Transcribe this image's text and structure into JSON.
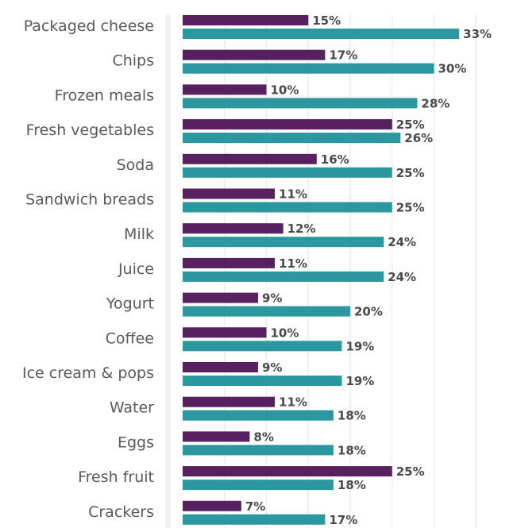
{
  "chart_data": {
    "type": "bar",
    "orientation": "horizontal",
    "categories": [
      "Packaged cheese",
      "Chips",
      "Frozen meals",
      "Fresh vegetables",
      "Soda",
      "Sandwich breads",
      "Milk",
      "Juice",
      "Yogurt",
      "Coffee",
      "Ice cream & pops",
      "Water",
      "Eggs",
      "Fresh fruit",
      "Crackers"
    ],
    "series": [
      {
        "color": "#57205f",
        "values": [
          15,
          17,
          10,
          25,
          16,
          11,
          12,
          11,
          9,
          10,
          9,
          11,
          8,
          25,
          7
        ]
      },
      {
        "color": "#2b98a0",
        "values": [
          33,
          30,
          28,
          26,
          25,
          25,
          24,
          24,
          20,
          19,
          19,
          18,
          18,
          18,
          17
        ]
      }
    ],
    "value_suffix": "%",
    "xlim": [
      0,
      36
    ],
    "grid": true,
    "legend": "none"
  }
}
